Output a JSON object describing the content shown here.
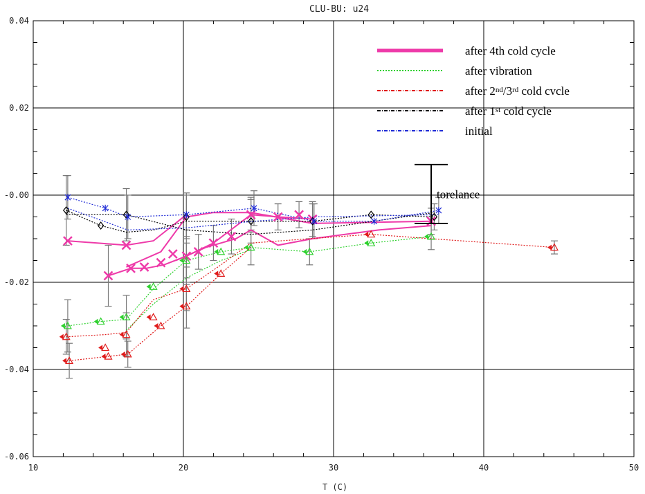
{
  "chart_data": {
    "type": "scatter",
    "title": "CLU-BU:  u24",
    "xlabel": "T (C)",
    "ylabel": "",
    "xlim": [
      10,
      50
    ],
    "ylim": [
      -0.06,
      0.04
    ],
    "x_ticks": [
      10,
      20,
      30,
      40,
      50
    ],
    "x_tick_labels": [
      "10",
      "20",
      "30",
      "40",
      "50"
    ],
    "y_ticks": [
      -0.06,
      -0.04,
      -0.02,
      0.0,
      0.02,
      0.04
    ],
    "y_tick_labels": [
      "-0.06",
      "-0.04",
      "-0.02",
      "-0.00",
      "0.02",
      "0.04"
    ],
    "grid": true,
    "legend": {
      "position": "top-right",
      "entries": [
        {
          "main": "after 4th cold cycle",
          "color": "#ee3aa9",
          "style": "solid",
          "width": 5
        },
        {
          "main": "after vibration",
          "color": "#2fd12f",
          "style": "dotted",
          "width": 2
        },
        {
          "pre": "after 2",
          "sup1": "nd",
          "mid": "/3",
          "sup2": "rd",
          "post": " cold cvcle",
          "color": "#e01b1b",
          "style": "dashdot",
          "width": 2
        },
        {
          "main": "after 1",
          "sup1": "st",
          "post": " cold cycle",
          "color": "#000000",
          "style": "dashdot",
          "width": 2
        },
        {
          "main": "initial",
          "color": "#1f2bd6",
          "style": "dashdot",
          "width": 2
        }
      ]
    },
    "annotation": {
      "text": "torelance",
      "x": 36.5,
      "y_low": -0.0065,
      "y_high": 0.007
    },
    "series": [
      {
        "name": "after 4th cold cycle",
        "color": "#ee3aa9",
        "marker": "x",
        "points": [
          {
            "x": 12.3,
            "y": -0.0105,
            "e": 0
          },
          {
            "x": 16.2,
            "y": -0.0115,
            "e": 0
          },
          {
            "x": 15.0,
            "y": -0.0185,
            "e": 0.007
          },
          {
            "x": 16.5,
            "y": -0.0168,
            "e": 0
          },
          {
            "x": 17.4,
            "y": -0.0165,
            "e": 0
          },
          {
            "x": 18.5,
            "y": -0.0155,
            "e": 0
          },
          {
            "x": 19.3,
            "y": -0.0135,
            "e": 0
          },
          {
            "x": 20.2,
            "y": -0.014,
            "e": 0.006
          },
          {
            "x": 21.0,
            "y": -0.013,
            "e": 0.004
          },
          {
            "x": 22.0,
            "y": -0.011,
            "e": 0.004
          },
          {
            "x": 23.2,
            "y": -0.0095,
            "e": 0.004
          },
          {
            "x": 24.5,
            "y": -0.0045,
            "e": 0.004
          },
          {
            "x": 26.3,
            "y": -0.005,
            "e": 0.003
          },
          {
            "x": 27.7,
            "y": -0.0045,
            "e": 0.003
          },
          {
            "x": 28.6,
            "y": -0.0055,
            "e": 0.004
          },
          {
            "x": 36.5,
            "y": -0.006,
            "e": 0.003
          }
        ],
        "lines": [
          [
            [
              12.3,
              -0.0105
            ],
            [
              16.2,
              -0.0115
            ],
            [
              18.0,
              -0.0105
            ],
            [
              20.2,
              -0.0045
            ]
          ],
          [
            [
              15.0,
              -0.0185
            ],
            [
              16.5,
              -0.0168
            ],
            [
              17.5,
              -0.0168
            ],
            [
              18.7,
              -0.016
            ],
            [
              20.2,
              -0.014
            ],
            [
              22.0,
              -0.011
            ],
            [
              24.5,
              -0.0045
            ],
            [
              26.3,
              -0.005
            ],
            [
              28.6,
              -0.0055
            ]
          ],
          [
            [
              16.2,
              -0.0165
            ],
            [
              18.5,
              -0.013
            ],
            [
              20.2,
              -0.005
            ],
            [
              22.0,
              -0.004
            ],
            [
              24.5,
              -0.004
            ],
            [
              28.6,
              -0.0065
            ],
            [
              36.5,
              -0.006
            ]
          ],
          [
            [
              19.5,
              -0.015
            ],
            [
              21.5,
              -0.012
            ],
            [
              23.5,
              -0.01
            ],
            [
              24.5,
              -0.008
            ],
            [
              26.3,
              -0.0115
            ],
            [
              28.6,
              -0.01
            ],
            [
              33.0,
              -0.008
            ],
            [
              36.5,
              -0.007
            ]
          ]
        ]
      },
      {
        "name": "after vibration",
        "color": "#2fd12f",
        "marker": "tri",
        "points": [
          {
            "x": 12.3,
            "y": -0.03,
            "e": 0.006
          },
          {
            "x": 14.5,
            "y": -0.029,
            "e": 0
          },
          {
            "x": 16.2,
            "y": -0.028,
            "e": 0.005
          },
          {
            "x": 18.0,
            "y": -0.021,
            "e": 0
          },
          {
            "x": 20.2,
            "y": -0.015,
            "e": 0.004
          },
          {
            "x": 22.5,
            "y": -0.013,
            "e": 0
          },
          {
            "x": 24.5,
            "y": -0.012,
            "e": 0.004
          },
          {
            "x": 28.4,
            "y": -0.013,
            "e": 0.003
          },
          {
            "x": 32.5,
            "y": -0.011,
            "e": 0
          },
          {
            "x": 36.5,
            "y": -0.0095,
            "e": 0.003
          }
        ],
        "lines": [
          [
            [
              12.3,
              -0.03
            ],
            [
              14.5,
              -0.029
            ],
            [
              16.2,
              -0.0285
            ],
            [
              18.0,
              -0.0215
            ],
            [
              20.2,
              -0.015
            ],
            [
              22.5,
              -0.013
            ],
            [
              24.5,
              -0.012
            ],
            [
              28.4,
              -0.013
            ],
            [
              32.5,
              -0.011
            ],
            [
              36.5,
              -0.0095
            ]
          ],
          [
            [
              16.2,
              -0.031
            ],
            [
              18.0,
              -0.025
            ],
            [
              20.2,
              -0.019
            ],
            [
              22.5,
              -0.015
            ],
            [
              24.5,
              -0.0125
            ]
          ]
        ]
      },
      {
        "name": "after 2nd/3rd cold cvcle",
        "color": "#e01b1b",
        "marker": "tri",
        "points": [
          {
            "x": 12.2,
            "y": -0.0325,
            "e": 0.004
          },
          {
            "x": 12.4,
            "y": -0.038,
            "e": 0.004
          },
          {
            "x": 14.8,
            "y": -0.035,
            "e": 0
          },
          {
            "x": 15.0,
            "y": -0.037,
            "e": 0
          },
          {
            "x": 16.2,
            "y": -0.032,
            "e": 0.005
          },
          {
            "x": 16.3,
            "y": -0.0365,
            "e": 0.003
          },
          {
            "x": 18.0,
            "y": -0.028,
            "e": 0
          },
          {
            "x": 18.5,
            "y": -0.03,
            "e": 0
          },
          {
            "x": 20.2,
            "y": -0.0215,
            "e": 0.005
          },
          {
            "x": 20.2,
            "y": -0.0255,
            "e": 0.005
          },
          {
            "x": 22.5,
            "y": -0.018,
            "e": 0
          },
          {
            "x": 32.5,
            "y": -0.009,
            "e": 0
          },
          {
            "x": 44.7,
            "y": -0.012,
            "e": 0.0015
          }
        ],
        "lines": [
          [
            [
              12.2,
              -0.0325
            ],
            [
              14.8,
              -0.032
            ],
            [
              16.2,
              -0.0315
            ],
            [
              18.0,
              -0.024
            ],
            [
              20.2,
              -0.0215
            ],
            [
              22.5,
              -0.016
            ],
            [
              24.5,
              -0.011
            ],
            [
              28.4,
              -0.01
            ],
            [
              32.5,
              -0.009
            ],
            [
              36.5,
              -0.01
            ],
            [
              44.7,
              -0.012
            ]
          ],
          [
            [
              12.4,
              -0.038
            ],
            [
              15.0,
              -0.037
            ],
            [
              16.3,
              -0.0365
            ],
            [
              18.5,
              -0.03
            ],
            [
              20.2,
              -0.0255
            ],
            [
              22.5,
              -0.018
            ],
            [
              24.5,
              -0.012
            ]
          ]
        ]
      },
      {
        "name": "after 1st cold cycle",
        "color": "#000000",
        "marker": "diamond",
        "points": [
          {
            "x": 12.2,
            "y": -0.0035,
            "e": 0.008
          },
          {
            "x": 14.5,
            "y": -0.007,
            "e": 0
          },
          {
            "x": 16.2,
            "y": -0.0045,
            "e": 0.006
          },
          {
            "x": 20.2,
            "y": -0.005,
            "e": 0.005
          },
          {
            "x": 24.5,
            "y": -0.006,
            "e": 0.005
          },
          {
            "x": 28.6,
            "y": -0.006,
            "e": 0.004
          },
          {
            "x": 32.5,
            "y": -0.0045,
            "e": 0
          },
          {
            "x": 36.7,
            "y": -0.005,
            "e": 0.003
          }
        ],
        "lines": [
          [
            [
              12.2,
              -0.0035
            ],
            [
              14.5,
              -0.007
            ],
            [
              16.2,
              -0.0085
            ],
            [
              18.0,
              -0.008
            ],
            [
              20.2,
              -0.006
            ],
            [
              24.5,
              -0.006
            ],
            [
              28.6,
              -0.006
            ],
            [
              32.5,
              -0.0045
            ],
            [
              36.7,
              -0.005
            ]
          ],
          [
            [
              12.2,
              -0.0045
            ],
            [
              16.2,
              -0.0045
            ],
            [
              20.2,
              -0.008
            ],
            [
              24.5,
              -0.009
            ],
            [
              28.6,
              -0.008
            ],
            [
              36.7,
              -0.004
            ]
          ]
        ]
      },
      {
        "name": "initial",
        "color": "#1f2bd6",
        "marker": "star",
        "points": [
          {
            "x": 12.3,
            "y": -0.0005,
            "e": 0.005
          },
          {
            "x": 14.8,
            "y": -0.003,
            "e": 0
          },
          {
            "x": 16.3,
            "y": -0.005,
            "e": 0.005
          },
          {
            "x": 20.2,
            "y": -0.0045,
            "e": 0.005
          },
          {
            "x": 24.7,
            "y": -0.003,
            "e": 0.004
          },
          {
            "x": 28.7,
            "y": -0.006,
            "e": 0.004
          },
          {
            "x": 32.7,
            "y": -0.006,
            "e": 0
          },
          {
            "x": 37.0,
            "y": -0.0035,
            "e": 0.003
          }
        ],
        "lines": [
          [
            [
              12.3,
              -0.0005
            ],
            [
              14.8,
              -0.003
            ],
            [
              16.3,
              -0.005
            ],
            [
              20.2,
              -0.0045
            ],
            [
              24.7,
              -0.003
            ],
            [
              28.7,
              -0.006
            ],
            [
              32.7,
              -0.006
            ],
            [
              37.0,
              -0.0035
            ]
          ],
          [
            [
              12.3,
              -0.003
            ],
            [
              16.3,
              -0.008
            ],
            [
              20.2,
              -0.0075
            ],
            [
              24.7,
              -0.006
            ],
            [
              28.7,
              -0.005
            ],
            [
              37.0,
              -0.0045
            ]
          ]
        ]
      }
    ]
  }
}
